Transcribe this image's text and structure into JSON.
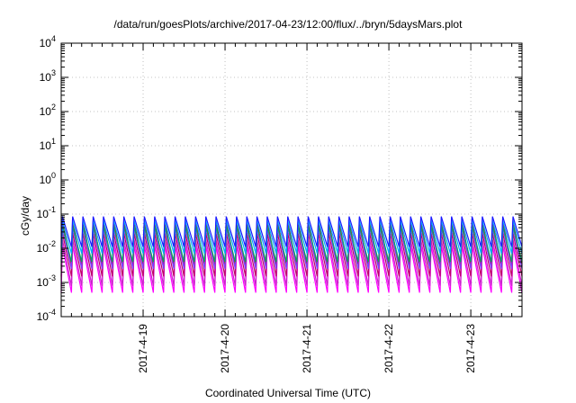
{
  "chart_data": {
    "type": "line",
    "title": "/data/run/goesPlots/archive/2017-04-23/12:00/flux/../bryn/5daysMars.plot",
    "xlabel": "Coordinated Universal Time (UTC)",
    "ylabel": "cGy/day",
    "y_scale": "log",
    "ylim": [
      0.0001,
      10000
    ],
    "xlim": [
      "2017-04-18 00:00",
      "2017-04-23 15:00"
    ],
    "y_tick_labels": [
      {
        "base": "10",
        "exp": "-4"
      },
      {
        "base": "10",
        "exp": "-3"
      },
      {
        "base": "10",
        "exp": "-2"
      },
      {
        "base": "10",
        "exp": "-1"
      },
      {
        "base": "10",
        "exp": "0"
      },
      {
        "base": "10",
        "exp": "1"
      },
      {
        "base": "10",
        "exp": "2"
      },
      {
        "base": "10",
        "exp": "3"
      },
      {
        "base": "10",
        "exp": "4"
      }
    ],
    "x_tick_labels": [
      "2017-4-19",
      "2017-4-20",
      "2017-4-21",
      "2017-4-22",
      "2017-4-23"
    ],
    "grid": true,
    "legend": "none",
    "pattern": {
      "shape": "sawtooth",
      "period_hours": 3,
      "series": [
        {
          "color": "#ff00ff",
          "peak": 0.012,
          "trough": 0.0005
        },
        {
          "color": "#cc22cc",
          "peak": 0.018,
          "trough": 0.0008
        },
        {
          "color": "#c0006a",
          "peak": 0.028,
          "trough": 0.0015
        },
        {
          "color": "#d01010",
          "peak": 0.06,
          "trough": 0.003
        },
        {
          "color": "#7a40ff",
          "peak": 0.04,
          "trough": 0.0025
        },
        {
          "color": "#00a86b",
          "peak": 0.045,
          "trough": 0.004
        },
        {
          "color": "#00aaff",
          "peak": 0.065,
          "trough": 0.007
        },
        {
          "color": "#1a1aff",
          "peak": 0.085,
          "trough": 0.011
        }
      ]
    }
  }
}
